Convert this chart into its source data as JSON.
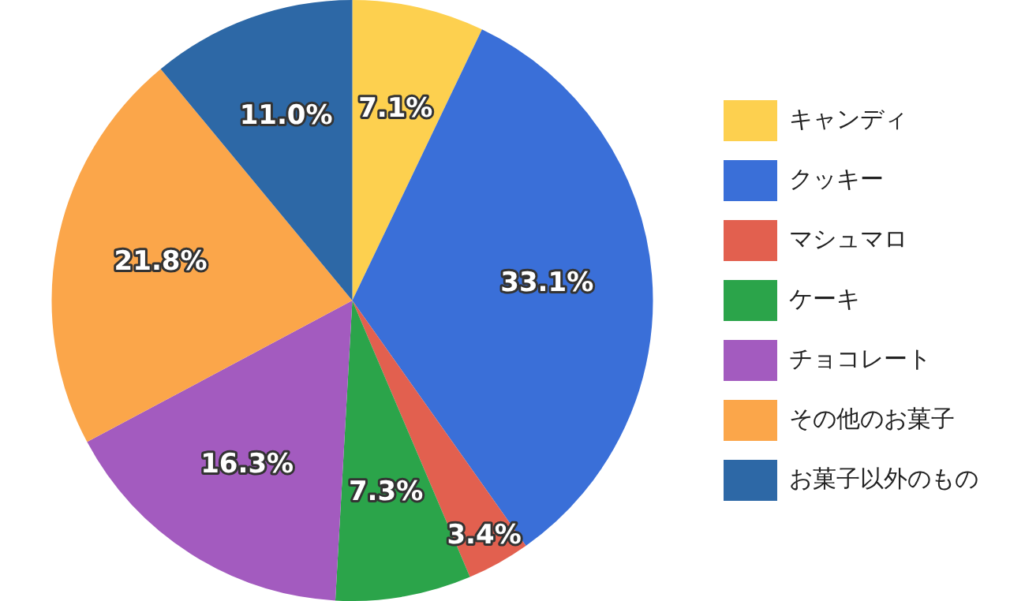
{
  "chart_data": {
    "type": "pie",
    "categories": [
      "キャンディ",
      "クッキー",
      "マシュマロ",
      "ケーキ",
      "チョコレート",
      "その他のお菓子",
      "お菓子以外のもの"
    ],
    "values": [
      7.1,
      33.1,
      3.4,
      7.3,
      16.3,
      21.8,
      11.0
    ],
    "value_labels": [
      "7.1%",
      "33.1%",
      "3.4%",
      "7.3%",
      "16.3%",
      "21.8%",
      "11.0%"
    ],
    "colors": [
      "#fdd04f",
      "#3a6fd8",
      "#e2604f",
      "#2ba44a",
      "#a35bbf",
      "#fba64a",
      "#2d68a6"
    ],
    "legend": "right"
  }
}
